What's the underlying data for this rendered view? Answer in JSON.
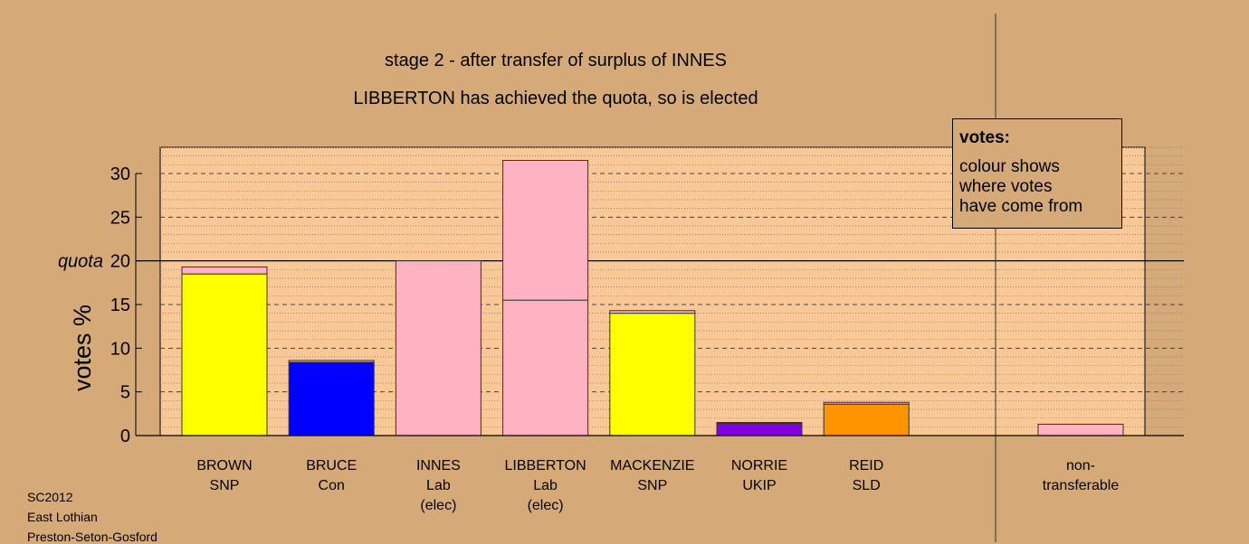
{
  "titles": {
    "line1": "stage 2 - after transfer of surplus of INNES",
    "line2": "LIBBERTON has achieved the quota, so is elected"
  },
  "legend": {
    "title": "votes:",
    "lines": [
      "colour shows",
      "where votes",
      "have come from"
    ]
  },
  "footer": {
    "line1": "SC2012",
    "line2": "East Lothian",
    "line3": "Preston-Seton-Gosford"
  },
  "chart_data": {
    "type": "bar",
    "ylabel": "votes %",
    "ylim": [
      0,
      33
    ],
    "yticks": [
      0,
      5,
      10,
      15,
      20,
      25,
      30
    ],
    "quota": {
      "label": "quota",
      "value": 20
    },
    "colors": {
      "background": "#D5AA78",
      "plot_area": "#FAC896",
      "SNP": "#FFFF00",
      "Con": "#0000FF",
      "Lab": "#FFB2C2",
      "UKIP": "#8000E0",
      "SLD": "#FF9400"
    },
    "candidates": [
      {
        "name": "BROWN",
        "party": "SNP",
        "note": "",
        "segments": [
          {
            "from": "SNP",
            "value": 18.5
          },
          {
            "from": "Lab",
            "value": 0.8
          }
        ]
      },
      {
        "name": "BRUCE",
        "party": "Con",
        "note": "",
        "segments": [
          {
            "from": "Con",
            "value": 8.4
          },
          {
            "from": "Lab",
            "value": 0.2
          }
        ]
      },
      {
        "name": "INNES",
        "party": "Lab",
        "note": "(elec)",
        "segments": [
          {
            "from": "Lab",
            "value": 20.0
          }
        ]
      },
      {
        "name": "LIBBERTON",
        "party": "Lab",
        "note": "(elec)",
        "segments": [
          {
            "from": "Lab",
            "value": 15.5
          },
          {
            "from": "Lab",
            "value": 16.0
          }
        ]
      },
      {
        "name": "MACKENZIE",
        "party": "SNP",
        "note": "",
        "segments": [
          {
            "from": "SNP",
            "value": 14.0
          },
          {
            "from": "Lab",
            "value": 0.3
          }
        ]
      },
      {
        "name": "NORRIE",
        "party": "UKIP",
        "note": "",
        "segments": [
          {
            "from": "UKIP",
            "value": 1.4
          },
          {
            "from": "Lab",
            "value": 0.1
          }
        ]
      },
      {
        "name": "REID",
        "party": "SLD",
        "note": "",
        "segments": [
          {
            "from": "SLD",
            "value": 3.6
          },
          {
            "from": "Lab",
            "value": 0.2
          }
        ]
      }
    ],
    "non_transferable": {
      "label_line1": "non-",
      "label_line2": "transferable",
      "value": 1.3,
      "from": "Lab"
    }
  }
}
